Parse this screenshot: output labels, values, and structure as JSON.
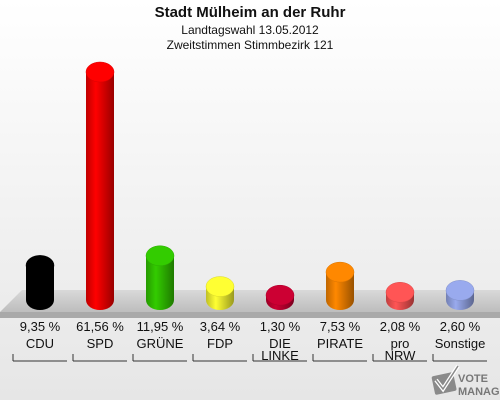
{
  "chart_data": {
    "type": "bar",
    "title": "Stadt Mülheim an der Ruhr",
    "subtitle_1": "Landtagswahl 13.05.2012",
    "subtitle_2": "Zweitstimmen Stimmbezirk 121",
    "categories": [
      [
        "CDU"
      ],
      [
        "SPD"
      ],
      [
        "GRÜNE"
      ],
      [
        "FDP"
      ],
      [
        "DIE",
        "LINKE"
      ],
      [
        "PIRATE"
      ],
      [
        "pro",
        "NRW"
      ],
      [
        "Sonstige"
      ]
    ],
    "values": [
      9.35,
      61.56,
      11.95,
      3.64,
      1.3,
      7.53,
      2.08,
      2.6
    ],
    "value_labels": [
      "9,35 %",
      "61,56 %",
      "11,95 %",
      "3,64 %",
      "1,30 %",
      "7,53 %",
      "2,08 %",
      "2,60 %"
    ],
    "colors": [
      "#000000",
      "#ff0000",
      "#33cc00",
      "#ffff33",
      "#cc0033",
      "#ff8800",
      "#ff5555",
      "#99aaee"
    ],
    "grid": false,
    "legend": "none"
  },
  "logo": {
    "line1": "VOTE",
    "line2": "MANAGER"
  }
}
